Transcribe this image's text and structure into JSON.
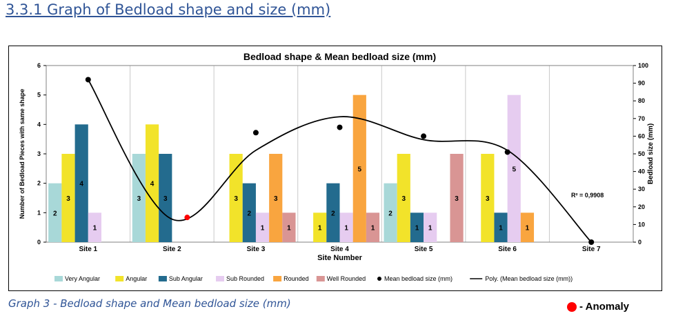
{
  "heading": "3.3.1 Graph of Bedload shape and size (mm)",
  "caption": "Graph 3 - Bedload shape and Mean bedload size (mm)",
  "anomaly_legend": {
    "label": "- Anomaly",
    "color": "#ff0000"
  },
  "chart_data": {
    "type": "bar",
    "title": "Bedload shape & Mean bedload size (mm)",
    "xlabel": "Site Number",
    "ylabel": "Number of Bedload Pieces with same shape",
    "y2label": "Bedload size (mm)",
    "categories": [
      "Site 1",
      "Site 2",
      "Site 3",
      "Site 4",
      "Site 5",
      "Site 6",
      "Site 7"
    ],
    "ylim": [
      0,
      6
    ],
    "yticks": [
      0,
      1,
      2,
      3,
      4,
      5,
      6
    ],
    "y2lim": [
      0,
      100
    ],
    "y2ticks": [
      0,
      10,
      20,
      30,
      40,
      50,
      60,
      70,
      80,
      90,
      100
    ],
    "grid": "vertical",
    "legend_position": "bottom",
    "series": [
      {
        "name": "Very Angular",
        "color": "#A8D8D8",
        "values": [
          2,
          3,
          0,
          0,
          2,
          0,
          0
        ],
        "labels": [
          "2",
          "3",
          "",
          "",
          "2",
          "",
          ""
        ]
      },
      {
        "name": "Angular",
        "color": "#F2E32A",
        "values": [
          3,
          4,
          3,
          1,
          3,
          3,
          0
        ],
        "labels": [
          "3",
          "4",
          "3",
          "1",
          "3",
          "3",
          ""
        ]
      },
      {
        "name": "Sub Angular",
        "color": "#236B8E",
        "values": [
          4,
          3,
          2,
          2,
          1,
          1,
          0
        ],
        "labels": [
          "4",
          "3",
          "2",
          "2",
          "1",
          "1",
          ""
        ]
      },
      {
        "name": "Sub Rounded",
        "color": "#E6CCF0",
        "values": [
          1,
          0,
          1,
          1,
          1,
          5,
          0
        ],
        "labels": [
          "1",
          "",
          "1",
          "1",
          "1",
          "5",
          ""
        ]
      },
      {
        "name": "Rounded",
        "color": "#F9A53F",
        "values": [
          0,
          0,
          3,
          5,
          0,
          1,
          0
        ],
        "labels": [
          "",
          "",
          "3",
          "5",
          "",
          "1",
          ""
        ]
      },
      {
        "name": "Well Rounded",
        "color": "#D99594",
        "values": [
          0,
          0,
          1,
          1,
          3,
          0,
          0
        ],
        "labels": [
          "",
          "",
          "1",
          "1",
          "3",
          "",
          ""
        ]
      }
    ],
    "mean_size": {
      "name": "Mean bedload size (mm)",
      "color": "#000000",
      "values": [
        92,
        14,
        62,
        65,
        60,
        51,
        0
      ],
      "anomaly_index": 1,
      "anomaly_color": "#ff0000"
    },
    "trendline": {
      "name": "Poly. (Mean bedload size (mm))",
      "color": "#000000",
      "r2_label": "R² = 0,9908",
      "values": [
        92,
        13,
        52,
        71,
        58,
        52,
        0
      ]
    }
  }
}
